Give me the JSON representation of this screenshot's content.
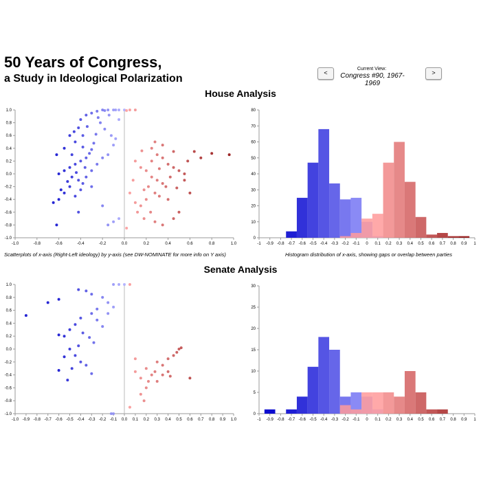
{
  "header": {
    "title": "50 Years of Congress,",
    "subtitle": "a Study in Ideological Polarization"
  },
  "nav": {
    "prev_label": "<",
    "next_label": ">",
    "current_view_label": "Current View:",
    "current_view_value": "Congress #90, 1967-1969"
  },
  "sections": {
    "house_title": "House Analysis",
    "senate_title": "Senate Analysis"
  },
  "captions": {
    "scatter": "Scatterplots of x-axis (Right-Left ideology) by y-axis (see DW-NOMINATE for more info on Y axis)",
    "histogram": "Histogram distribution of x-axis, showing gaps or overlap between parties"
  },
  "colors": {
    "dem_dark": "#0000cc",
    "dem_light": "#aaaaff",
    "rep_dark": "#8b0000",
    "rep_light": "#ff9a9a",
    "zero_line": "#bbbbbb",
    "axis": "#999999"
  },
  "chart_data": [
    {
      "id": "house-scatter",
      "type": "scatter",
      "title": "",
      "xlabel": "",
      "ylabel": "",
      "xlim": [
        -1,
        1
      ],
      "ylim": [
        -1,
        1
      ],
      "xticks": [
        "-1.0",
        "-0.8",
        "-0.6",
        "-0.4",
        "-0.2",
        "0.0",
        "0.2",
        "0.4",
        "0.6",
        "0.8",
        "1.0"
      ],
      "yticks": [
        "1.0",
        "0.8",
        "0.6",
        "0.4",
        "0.2",
        "0.0",
        "-0.2",
        "-0.4",
        "-0.6",
        "-0.8",
        "-1.0"
      ],
      "grid": false,
      "points": [
        [
          -0.3,
          0.95
        ],
        [
          -0.25,
          0.98
        ],
        [
          -0.2,
          1.0
        ],
        [
          -0.15,
          1.0
        ],
        [
          -0.1,
          1.0
        ],
        [
          -0.05,
          1.0
        ],
        [
          0.0,
          1.0
        ],
        [
          0.05,
          1.0
        ],
        [
          0.1,
          1.0
        ],
        [
          -0.18,
          0.99
        ],
        [
          -0.08,
          1.0
        ],
        [
          0.02,
          0.99
        ],
        [
          -0.35,
          0.92
        ],
        [
          -0.4,
          0.85
        ],
        [
          -0.42,
          0.72
        ],
        [
          -0.5,
          0.6
        ],
        [
          -0.45,
          0.5
        ],
        [
          -0.38,
          0.42
        ],
        [
          -0.3,
          0.38
        ],
        [
          -0.35,
          0.25
        ],
        [
          -0.4,
          0.2
        ],
        [
          -0.45,
          0.15
        ],
        [
          -0.5,
          0.1
        ],
        [
          -0.55,
          0.05
        ],
        [
          -0.6,
          0.0
        ],
        [
          -0.48,
          -0.05
        ],
        [
          -0.42,
          -0.1
        ],
        [
          -0.38,
          -0.15
        ],
        [
          -0.5,
          -0.2
        ],
        [
          -0.55,
          -0.3
        ],
        [
          -0.6,
          -0.4
        ],
        [
          -0.65,
          -0.45
        ],
        [
          -0.45,
          -0.35
        ],
        [
          -0.35,
          -0.05
        ],
        [
          -0.3,
          0.05
        ],
        [
          -0.25,
          0.15
        ],
        [
          -0.2,
          0.25
        ],
        [
          -0.15,
          0.3
        ],
        [
          -0.1,
          0.45
        ],
        [
          -0.08,
          0.55
        ],
        [
          -0.12,
          0.6
        ],
        [
          -0.18,
          0.7
        ],
        [
          -0.22,
          0.8
        ],
        [
          -0.05,
          0.85
        ],
        [
          -0.28,
          0.48
        ],
        [
          -0.32,
          0.32
        ],
        [
          -0.36,
          0.1
        ],
        [
          -0.44,
          0.02
        ],
        [
          -0.52,
          -0.12
        ],
        [
          -0.58,
          -0.25
        ],
        [
          -0.4,
          -0.25
        ],
        [
          -0.3,
          -0.2
        ],
        [
          -0.62,
          0.3
        ],
        [
          -0.55,
          0.4
        ],
        [
          -0.48,
          0.3
        ],
        [
          -0.62,
          -0.8
        ],
        [
          -0.2,
          -0.5
        ],
        [
          -0.15,
          -0.8
        ],
        [
          -0.1,
          -0.75
        ],
        [
          -0.42,
          -0.6
        ],
        [
          -0.38,
          0.6
        ],
        [
          -0.26,
          0.62
        ],
        [
          -0.46,
          0.66
        ],
        [
          -0.34,
          0.74
        ],
        [
          -0.24,
          0.88
        ],
        [
          -0.14,
          0.92
        ],
        [
          0.15,
          0.1
        ],
        [
          0.2,
          0.05
        ],
        [
          0.25,
          -0.05
        ],
        [
          0.3,
          -0.1
        ],
        [
          0.35,
          -0.15
        ],
        [
          0.22,
          -0.2
        ],
        [
          0.18,
          -0.25
        ],
        [
          0.28,
          -0.3
        ],
        [
          0.32,
          -0.35
        ],
        [
          0.4,
          -0.4
        ],
        [
          0.25,
          0.2
        ],
        [
          0.3,
          0.3
        ],
        [
          0.35,
          0.25
        ],
        [
          0.4,
          0.15
        ],
        [
          0.45,
          0.1
        ],
        [
          0.5,
          0.05
        ],
        [
          0.55,
          0.0
        ],
        [
          0.42,
          -0.05
        ],
        [
          0.38,
          -0.2
        ],
        [
          0.2,
          -0.4
        ],
        [
          0.15,
          -0.5
        ],
        [
          0.1,
          -0.45
        ],
        [
          0.05,
          -0.3
        ],
        [
          0.08,
          -0.1
        ],
        [
          0.12,
          -0.6
        ],
        [
          0.18,
          -0.7
        ],
        [
          0.28,
          -0.75
        ],
        [
          0.35,
          -0.8
        ],
        [
          0.45,
          -0.7
        ],
        [
          0.5,
          -0.6
        ],
        [
          0.25,
          0.4
        ],
        [
          0.28,
          0.5
        ],
        [
          0.35,
          0.45
        ],
        [
          0.45,
          0.35
        ],
        [
          0.58,
          0.2
        ],
        [
          0.64,
          0.35
        ],
        [
          0.7,
          0.25
        ],
        [
          0.8,
          0.32
        ],
        [
          0.96,
          0.3
        ],
        [
          0.6,
          -0.3
        ],
        [
          0.55,
          -0.1
        ],
        [
          0.02,
          -0.85
        ],
        [
          -0.05,
          -0.7
        ],
        [
          0.1,
          0.2
        ],
        [
          0.16,
          0.36
        ],
        [
          0.32,
          0.08
        ],
        [
          0.48,
          -0.22
        ],
        [
          0.24,
          -0.6
        ]
      ]
    },
    {
      "id": "house-histogram",
      "type": "bar",
      "title": "",
      "xlabel": "",
      "ylabel": "",
      "xlim": [
        -1,
        1
      ],
      "ylim": [
        0,
        80
      ],
      "xticks": [
        "-1",
        "-0.9",
        "-0.8",
        "-0.7",
        "-0.6",
        "-0.5",
        "-0.4",
        "-0.3",
        "-0.2",
        "-0.1",
        "0",
        "0.1",
        "0.2",
        "0.3",
        "0.4",
        "0.5",
        "0.6",
        "0.7",
        "0.8",
        "0.9",
        "1"
      ],
      "yticks": [
        "0",
        "10",
        "20",
        "30",
        "40",
        "50",
        "60",
        "70",
        "80"
      ],
      "bin_width": 0.1,
      "series": [
        {
          "party": "D",
          "bins": [
            -0.7,
            -0.6,
            -0.5,
            -0.4,
            -0.3,
            -0.2,
            -0.1,
            0.0,
            0.1
          ],
          "values": [
            4,
            25,
            47,
            68,
            34,
            24,
            25,
            10,
            1
          ]
        },
        {
          "party": "R",
          "bins": [
            -0.2,
            -0.1,
            0.0,
            0.1,
            0.2,
            0.3,
            0.4,
            0.5,
            0.6,
            0.7,
            0.8,
            0.9
          ],
          "values": [
            1,
            3,
            12,
            15,
            47,
            60,
            35,
            13,
            2,
            3,
            1,
            1
          ]
        }
      ]
    },
    {
      "id": "senate-scatter",
      "type": "scatter",
      "title": "",
      "xlabel": "",
      "ylabel": "",
      "xlim": [
        -1,
        1
      ],
      "ylim": [
        -1,
        1
      ],
      "xticks": [
        "-1.0",
        "-0.9",
        "-0.8",
        "-0.7",
        "-0.6",
        "-0.5",
        "-0.4",
        "-0.3",
        "-0.2",
        "-0.1",
        "0.0",
        "0.1",
        "0.2",
        "0.3",
        "0.4",
        "0.5",
        "0.6",
        "0.7",
        "0.8",
        "0.9",
        "1.0"
      ],
      "yticks": [
        "1.0",
        "0.8",
        "0.6",
        "0.4",
        "0.2",
        "0.0",
        "-0.2",
        "-0.4",
        "-0.6",
        "-0.8",
        "-1.0"
      ],
      "grid": false,
      "points": [
        [
          -0.1,
          1.0
        ],
        [
          -0.05,
          1.0
        ],
        [
          0.0,
          1.0
        ],
        [
          0.05,
          1.0
        ],
        [
          -0.9,
          0.52
        ],
        [
          -0.7,
          0.72
        ],
        [
          -0.6,
          0.77
        ],
        [
          -0.42,
          0.92
        ],
        [
          -0.35,
          0.9
        ],
        [
          -0.2,
          0.8
        ],
        [
          -0.15,
          0.72
        ],
        [
          -0.25,
          0.62
        ],
        [
          -0.3,
          0.55
        ],
        [
          -0.4,
          0.48
        ],
        [
          -0.45,
          0.38
        ],
        [
          -0.5,
          0.3
        ],
        [
          -0.55,
          0.2
        ],
        [
          -0.6,
          0.22
        ],
        [
          -0.38,
          0.25
        ],
        [
          -0.32,
          0.18
        ],
        [
          -0.28,
          0.1
        ],
        [
          -0.42,
          0.05
        ],
        [
          -0.5,
          0.0
        ],
        [
          -0.45,
          -0.1
        ],
        [
          -0.4,
          -0.2
        ],
        [
          -0.35,
          -0.25
        ],
        [
          -0.48,
          -0.3
        ],
        [
          -0.6,
          -0.33
        ],
        [
          -0.3,
          -0.38
        ],
        [
          -0.52,
          -0.48
        ],
        [
          -0.55,
          -0.12
        ],
        [
          -0.2,
          0.35
        ],
        [
          -0.25,
          0.45
        ],
        [
          -0.15,
          0.55
        ],
        [
          -0.1,
          0.65
        ],
        [
          -0.3,
          0.85
        ],
        [
          -0.1,
          -1.0
        ],
        [
          -0.12,
          -1.0
        ],
        [
          0.1,
          -0.35
        ],
        [
          0.15,
          -0.45
        ],
        [
          0.2,
          -0.3
        ],
        [
          0.25,
          -0.4
        ],
        [
          0.3,
          -0.2
        ],
        [
          0.35,
          -0.25
        ],
        [
          0.4,
          -0.35
        ],
        [
          0.45,
          -0.1
        ],
        [
          0.5,
          0.0
        ],
        [
          0.52,
          0.02
        ],
        [
          0.48,
          -0.05
        ],
        [
          0.3,
          -0.5
        ],
        [
          0.2,
          -0.6
        ],
        [
          0.15,
          -0.7
        ],
        [
          0.6,
          -0.45
        ],
        [
          0.1,
          -0.15
        ],
        [
          0.4,
          -0.15
        ],
        [
          0.35,
          -0.4
        ],
        [
          0.28,
          -0.35
        ],
        [
          0.22,
          -0.5
        ],
        [
          0.18,
          -0.8
        ],
        [
          0.05,
          -0.9
        ],
        [
          0.42,
          -0.42
        ]
      ]
    },
    {
      "id": "senate-histogram",
      "type": "bar",
      "title": "",
      "xlabel": "",
      "ylabel": "",
      "xlim": [
        -1,
        1
      ],
      "ylim": [
        0,
        30
      ],
      "xticks": [
        "-1",
        "-0.9",
        "-0.8",
        "-0.7",
        "-0.6",
        "-0.5",
        "-0.4",
        "-0.3",
        "-0.2",
        "-0.1",
        "0",
        "0.1",
        "0.2",
        "0.3",
        "0.4",
        "0.5",
        "0.6",
        "0.7",
        "0.8",
        "0.9",
        "1"
      ],
      "yticks": [
        "0",
        "5",
        "10",
        "15",
        "20",
        "25",
        "30"
      ],
      "bin_width": 0.1,
      "series": [
        {
          "party": "D",
          "bins": [
            -0.9,
            -0.7,
            -0.6,
            -0.5,
            -0.4,
            -0.3,
            -0.2,
            -0.1,
            0.0,
            0.1
          ],
          "values": [
            1,
            1,
            4,
            11,
            18,
            15,
            4,
            5,
            4,
            1
          ]
        },
        {
          "party": "R",
          "bins": [
            -0.2,
            -0.1,
            0.0,
            0.1,
            0.2,
            0.3,
            0.4,
            0.5,
            0.6,
            0.7
          ],
          "values": [
            2,
            1,
            5,
            5,
            5,
            4,
            10,
            5,
            1,
            1
          ]
        }
      ]
    }
  ]
}
